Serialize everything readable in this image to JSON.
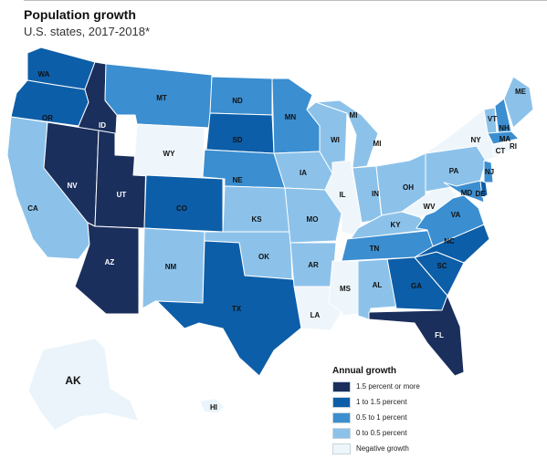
{
  "header": {
    "title": "Population growth",
    "subtitle": "U.S. states, 2017-2018*"
  },
  "legend": {
    "title": "Annual growth",
    "items": [
      {
        "label": "1.5 percent or more",
        "color": "#1b2f5c"
      },
      {
        "label": "1 to 1.5 percent",
        "color": "#0d5ea8"
      },
      {
        "label": "0.5 to 1 percent",
        "color": "#3b8ed0"
      },
      {
        "label": "0 to 0.5 percent",
        "color": "#8cc2ea"
      },
      {
        "label": "Negative growth",
        "color": "#eef6fb"
      }
    ]
  },
  "states": {
    "WA": "WA",
    "OR": "OR",
    "CA": "CA",
    "ID": "ID",
    "NV": "NV",
    "UT": "UT",
    "AZ": "AZ",
    "MT": "MT",
    "WY": "WY",
    "CO": "CO",
    "NM": "NM",
    "ND": "ND",
    "SD": "SD",
    "NE": "NE",
    "KS": "KS",
    "OK": "OK",
    "TX": "TX",
    "MN": "MN",
    "IA": "IA",
    "MO": "MO",
    "AR": "AR",
    "LA": "LA",
    "WI": "WI",
    "IL": "IL",
    "MI": "MI",
    "IN": "IN",
    "OH": "OH",
    "KY": "KY",
    "TN": "TN",
    "MS": "MS",
    "AL": "AL",
    "GA": "GA",
    "FL": "FL",
    "SC": "SC",
    "NC": "NC",
    "VA": "VA",
    "WV": "WV",
    "PA": "PA",
    "NY": "NY",
    "VT": "VT",
    "NH": "NH",
    "ME": "ME",
    "MA": "MA",
    "RI": "RI",
    "CT": "CT",
    "NJ": "NJ",
    "DE": "DE",
    "MD": "MD",
    "AK": "AK",
    "HI": "HI"
  }
}
